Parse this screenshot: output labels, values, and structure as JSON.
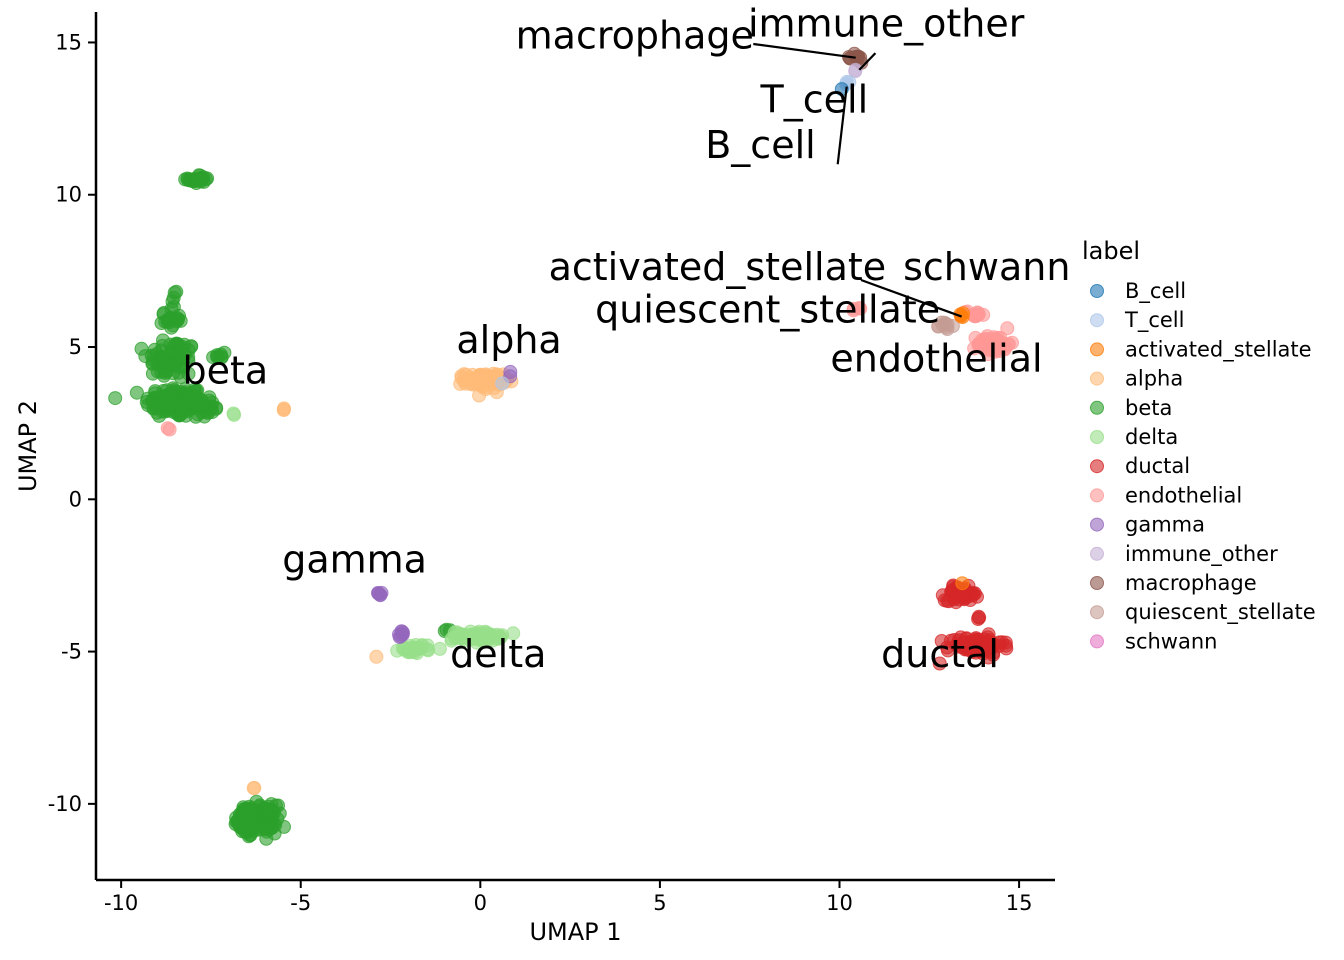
{
  "chart_data": {
    "type": "scatter",
    "xlabel": "UMAP 1",
    "ylabel": "UMAP 2",
    "xlim": [
      -10.7,
      16.0
    ],
    "ylim": [
      -12.5,
      16.0
    ],
    "x_ticks": [
      -10,
      -5,
      0,
      5,
      10,
      15
    ],
    "x_tick_labels": [
      "-10",
      "-5",
      "0",
      "5",
      "10",
      "15"
    ],
    "y_ticks": [
      -10,
      -5,
      0,
      5,
      10,
      15
    ],
    "y_tick_labels": [
      "-10",
      "-5",
      "0",
      "5",
      "10",
      "15"
    ],
    "grid": false,
    "legend": {
      "title": "label",
      "position": "right",
      "entries": [
        {
          "name": "B_cell",
          "color": "#1f77b4"
        },
        {
          "name": "T_cell",
          "color": "#aec7e8"
        },
        {
          "name": "activated_stellate",
          "color": "#ff7f0e"
        },
        {
          "name": "alpha",
          "color": "#ffbb78"
        },
        {
          "name": "beta",
          "color": "#2ca02c"
        },
        {
          "name": "delta",
          "color": "#98df8a"
        },
        {
          "name": "ductal",
          "color": "#d62728"
        },
        {
          "name": "endothelial",
          "color": "#ff9896"
        },
        {
          "name": "gamma",
          "color": "#9467bd"
        },
        {
          "name": "immune_other",
          "color": "#c5b0d5"
        },
        {
          "name": "macrophage",
          "color": "#8c564b"
        },
        {
          "name": "quiescent_stellate",
          "color": "#c49c94"
        },
        {
          "name": "schwann",
          "color": "#e377c2"
        }
      ]
    },
    "series": [
      {
        "name": "beta",
        "color": "#2ca02c",
        "clusters": [
          {
            "center": [
              -8.5,
              3.2
            ],
            "spread": [
              0.55,
              0.35
            ],
            "n": 140
          },
          {
            "center": [
              -8.6,
              4.6
            ],
            "spread": [
              0.45,
              0.45
            ],
            "n": 70
          },
          {
            "center": [
              -8.6,
              6.0
            ],
            "spread": [
              0.2,
              0.45
            ],
            "n": 25
          },
          {
            "center": [
              -7.8,
              3.0
            ],
            "spread": [
              0.25,
              0.2
            ],
            "n": 30
          },
          {
            "center": [
              -7.3,
              4.7
            ],
            "spread": [
              0.15,
              0.15
            ],
            "n": 8
          },
          {
            "center": [
              -7.8,
              10.5
            ],
            "spread": [
              0.22,
              0.1
            ],
            "n": 25
          },
          {
            "center": [
              -6.2,
              -10.5
            ],
            "spread": [
              0.35,
              0.3
            ],
            "n": 160
          },
          {
            "center": [
              -6.5,
              -10.6
            ],
            "spread": [
              0.25,
              0.25
            ],
            "n": 40
          },
          {
            "center": [
              -0.9,
              -4.3
            ],
            "spread": [
              0.08,
              0.05
            ],
            "n": 3
          }
        ]
      },
      {
        "name": "delta",
        "color": "#98df8a",
        "clusters": [
          {
            "center": [
              -0.1,
              -4.5
            ],
            "spread": [
              0.45,
              0.1
            ],
            "n": 80
          },
          {
            "center": [
              -1.8,
              -4.9
            ],
            "spread": [
              0.3,
              0.1
            ],
            "n": 30
          },
          {
            "center": [
              -6.8,
              2.8
            ],
            "spread": [
              0.08,
              0.05
            ],
            "n": 2
          }
        ]
      },
      {
        "name": "alpha",
        "color": "#ffbb78",
        "clusters": [
          {
            "center": [
              0.1,
              3.9
            ],
            "spread": [
              0.35,
              0.17
            ],
            "n": 90
          },
          {
            "center": [
              -5.5,
              2.95
            ],
            "spread": [
              0.05,
              0.05
            ],
            "n": 3
          },
          {
            "center": [
              -2.9,
              -5.15
            ],
            "spread": [
              0.02,
              0.02
            ],
            "n": 1
          },
          {
            "center": [
              -6.3,
              -9.5
            ],
            "spread": [
              0.03,
              0.03
            ],
            "n": 2
          }
        ]
      },
      {
        "name": "gamma",
        "color": "#9467bd",
        "clusters": [
          {
            "center": [
              -2.8,
              -3.1
            ],
            "spread": [
              0.06,
              0.07
            ],
            "n": 6
          },
          {
            "center": [
              -2.2,
              -4.45
            ],
            "spread": [
              0.1,
              0.1
            ],
            "n": 8
          },
          {
            "center": [
              0.8,
              4.1
            ],
            "spread": [
              0.06,
              0.05
            ],
            "n": 2
          }
        ]
      },
      {
        "name": "ductal",
        "color": "#d62728",
        "clusters": [
          {
            "center": [
              13.4,
              -3.1
            ],
            "spread": [
              0.3,
              0.15
            ],
            "n": 60
          },
          {
            "center": [
              13.8,
              -4.8
            ],
            "spread": [
              0.5,
              0.2
            ],
            "n": 90
          },
          {
            "center": [
              12.8,
              -5.4
            ],
            "spread": [
              0.03,
              0.03
            ],
            "n": 1
          },
          {
            "center": [
              13.9,
              -3.9
            ],
            "spread": [
              0.05,
              0.08
            ],
            "n": 3
          }
        ]
      },
      {
        "name": "endothelial",
        "color": "#ff9896",
        "clusters": [
          {
            "center": [
              14.3,
              5.1
            ],
            "spread": [
              0.3,
              0.2
            ],
            "n": 60
          },
          {
            "center": [
              13.8,
              6.1
            ],
            "spread": [
              0.25,
              0.1
            ],
            "n": 12
          },
          {
            "center": [
              10.5,
              6.25
            ],
            "spread": [
              0.08,
              0.04
            ],
            "n": 4
          },
          {
            "center": [
              -8.7,
              2.3
            ],
            "spread": [
              0.03,
              0.04
            ],
            "n": 2
          }
        ]
      },
      {
        "name": "quiescent_stellate",
        "color": "#c49c94",
        "clusters": [
          {
            "center": [
              12.9,
              5.7
            ],
            "spread": [
              0.15,
              0.08
            ],
            "n": 10
          }
        ]
      },
      {
        "name": "activated_stellate",
        "color": "#ff7f0e",
        "clusters": [
          {
            "center": [
              13.4,
              6.05
            ],
            "spread": [
              0.06,
              0.08
            ],
            "n": 5
          },
          {
            "center": [
              13.4,
              -2.75
            ],
            "spread": [
              0.03,
              0.03
            ],
            "n": 1
          }
        ]
      },
      {
        "name": "macrophage",
        "color": "#8c564b",
        "clusters": [
          {
            "center": [
              10.5,
              14.5
            ],
            "spread": [
              0.1,
              0.12
            ],
            "n": 12
          }
        ]
      },
      {
        "name": "immune_other",
        "color": "#c5b0d5",
        "clusters": [
          {
            "center": [
              10.45,
              14.05
            ],
            "spread": [
              0.04,
              0.04
            ],
            "n": 2
          }
        ]
      },
      {
        "name": "T_cell",
        "color": "#aec7e8",
        "clusters": [
          {
            "center": [
              10.25,
              13.65
            ],
            "spread": [
              0.05,
              0.05
            ],
            "n": 3
          },
          {
            "center": [
              0.6,
              3.8
            ],
            "spread": [
              0.03,
              0.03
            ],
            "n": 1
          }
        ]
      },
      {
        "name": "B_cell",
        "color": "#1f77b4",
        "clusters": [
          {
            "center": [
              10.1,
              13.45
            ],
            "spread": [
              0.02,
              0.02
            ],
            "n": 1
          }
        ]
      }
    ],
    "annotations": [
      {
        "text": "beta",
        "x": -7.1,
        "y": 3.8
      },
      {
        "text": "alpha",
        "x": 0.8,
        "y": 4.8
      },
      {
        "text": "gamma",
        "x": -3.5,
        "y": -2.4
      },
      {
        "text": "delta",
        "x": 0.5,
        "y": -5.5
      },
      {
        "text": "ductal",
        "x": 12.8,
        "y": -5.5
      },
      {
        "text": "endothelial",
        "x": 12.7,
        "y": 4.2
      },
      {
        "text": "quiescent_stellate",
        "x": 8.0,
        "y": 5.8
      },
      {
        "text": "activated_stellate",
        "x": 6.6,
        "y": 7.2
      },
      {
        "text": "schwann",
        "x": 14.1,
        "y": 7.2
      },
      {
        "text": "T_cell",
        "x": 9.3,
        "y": 12.7
      },
      {
        "text": "B_cell",
        "x": 7.8,
        "y": 11.2
      },
      {
        "text": "macrophage",
        "x": 4.3,
        "y": 14.8
      },
      {
        "text": "immune_other",
        "x": 11.3,
        "y": 15.2
      }
    ],
    "leaders": [
      {
        "from": [
          7.6,
          14.95
        ],
        "to": [
          10.45,
          14.5
        ]
      },
      {
        "from": [
          11.0,
          14.65
        ],
        "to": [
          10.55,
          14.1
        ]
      },
      {
        "from": [
          9.95,
          11.0
        ],
        "to": [
          10.2,
          13.55
        ]
      },
      {
        "from": [
          10.6,
          7.2
        ],
        "to": [
          13.4,
          6.0
        ]
      }
    ]
  }
}
